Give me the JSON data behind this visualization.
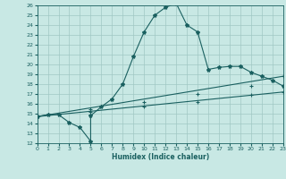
{
  "xlabel": "Humidex (Indice chaleur)",
  "xlim": [
    0,
    23
  ],
  "ylim": [
    12,
    26
  ],
  "yticks": [
    12,
    13,
    14,
    15,
    16,
    17,
    18,
    19,
    20,
    21,
    22,
    23,
    24,
    25,
    26
  ],
  "xticks": [
    0,
    1,
    2,
    3,
    4,
    5,
    6,
    7,
    8,
    9,
    10,
    11,
    12,
    13,
    14,
    15,
    16,
    17,
    18,
    19,
    20,
    21,
    22,
    23
  ],
  "bg_color": "#c8e8e4",
  "grid_color": "#a0c8c4",
  "line_color": "#1a6060",
  "series1_x": [
    0,
    1,
    2,
    3,
    4,
    5,
    5,
    6,
    7,
    8,
    9,
    10,
    11,
    12,
    13,
    14,
    15,
    16,
    17,
    18,
    19,
    20,
    21,
    22,
    23
  ],
  "series1_y": [
    14.7,
    14.9,
    14.9,
    14.1,
    13.6,
    12.2,
    14.8,
    15.7,
    16.5,
    18.0,
    20.8,
    23.3,
    25.0,
    25.8,
    26.2,
    24.0,
    23.3,
    19.5,
    19.7,
    19.8,
    19.8,
    19.2,
    18.8,
    18.4,
    17.8
  ],
  "series2_x": [
    0,
    23
  ],
  "series2_y": [
    14.7,
    17.2
  ],
  "series3_x": [
    0,
    23
  ],
  "series3_y": [
    14.7,
    18.8
  ],
  "series2_markers_x": [
    0,
    5,
    10,
    15,
    20,
    23
  ],
  "series2_markers_y": [
    14.7,
    15.2,
    15.7,
    16.2,
    16.9,
    17.2
  ],
  "series3_markers_x": [
    0,
    5,
    10,
    15,
    20,
    23
  ],
  "series3_markers_y": [
    14.7,
    15.5,
    16.2,
    17.0,
    17.8,
    18.8
  ]
}
